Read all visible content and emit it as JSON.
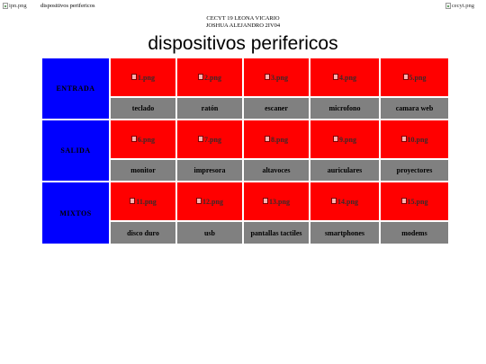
{
  "header": {
    "left_image": "ipn.png",
    "tab_title": "dispositivos perifericos",
    "right_image": "cecyt.png",
    "line1": "CECYT 19 LEONA VICARIO",
    "line2": "JOSHUA ALEJANDRO 2IV04"
  },
  "title": "dispositivos perifericos",
  "colors": {
    "category": "#0000ff",
    "image_cell": "#ff0000",
    "label_cell": "#808080"
  },
  "rows": [
    {
      "category": "ENTRADA",
      "items": [
        {
          "image": "1.png",
          "label": "teclado"
        },
        {
          "image": "2.png",
          "label": "ratón"
        },
        {
          "image": "3.png",
          "label": "escaner"
        },
        {
          "image": "4.png",
          "label": "microfono"
        },
        {
          "image": "5.png",
          "label": "camara web"
        }
      ]
    },
    {
      "category": "SALIDA",
      "items": [
        {
          "image": "6.png",
          "label": "monitor"
        },
        {
          "image": "7.png",
          "label": "impresora"
        },
        {
          "image": "8.png",
          "label": "altavoces"
        },
        {
          "image": "9.png",
          "label": "auriculares"
        },
        {
          "image": "10.png",
          "label": "proyectores"
        }
      ]
    },
    {
      "category": "MIXTOS",
      "items": [
        {
          "image": "11.png",
          "label": "disco duro"
        },
        {
          "image": "12.png",
          "label": "usb"
        },
        {
          "image": "13.png",
          "label": "pantallas tactiles"
        },
        {
          "image": "14.png",
          "label": "smartphones"
        },
        {
          "image": "15.png",
          "label": "modems"
        }
      ]
    }
  ]
}
